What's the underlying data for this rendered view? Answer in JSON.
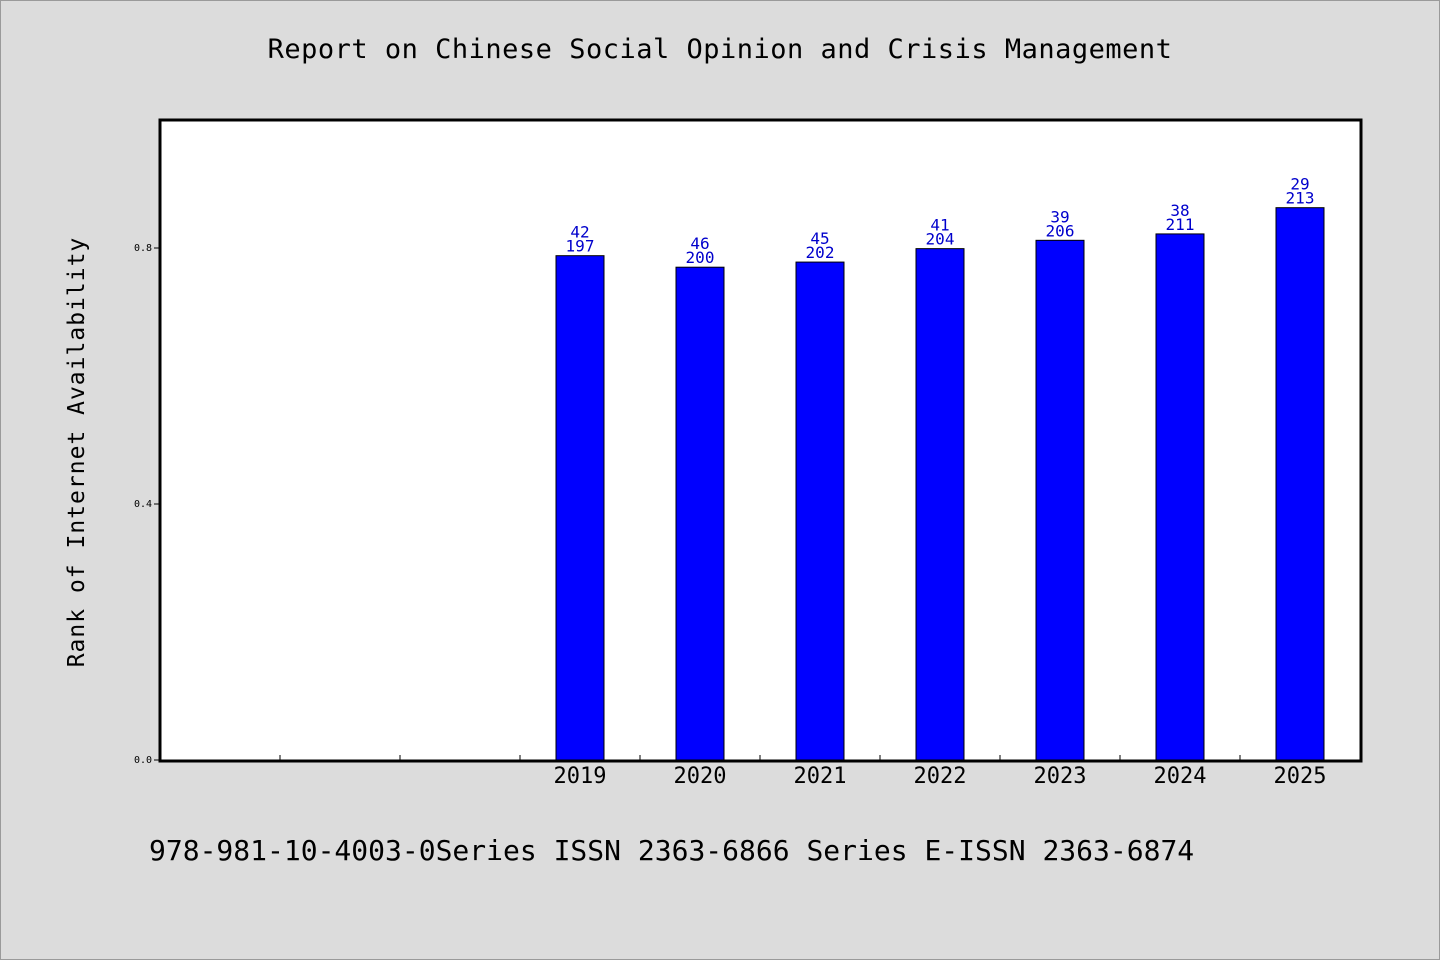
{
  "chart_data": {
    "type": "bar",
    "title": "Report on Chinese Social Opinion and Crisis Management",
    "ylabel": "Rank of Internet Availability",
    "xlabel": "",
    "categories": [
      "",
      "",
      "",
      "2019",
      "2020",
      "2021",
      "2022",
      "2023",
      "2024",
      "2025"
    ],
    "values": [
      null,
      null,
      null,
      0.788,
      0.77,
      0.778,
      0.799,
      0.812,
      0.822,
      0.863
    ],
    "bar_labels": [
      null,
      null,
      null,
      [
        "42",
        "197"
      ],
      [
        "46",
        "200"
      ],
      [
        "45",
        "202"
      ],
      [
        "41",
        "204"
      ],
      [
        "39",
        "206"
      ],
      [
        "38",
        "211"
      ],
      [
        "29",
        "213"
      ]
    ],
    "yticks": [
      0.0,
      0.4,
      0.8
    ],
    "ytick_labels": [
      "0.0",
      "0.4",
      "0.8"
    ],
    "ylim": [
      0,
      1.0
    ],
    "grid": false,
    "colors": {
      "bar_fill": "#0000ff",
      "bar_stroke": "#000000",
      "label_text": "#0000cc",
      "background": "#dcdcdc",
      "plot_background": "#ffffff"
    }
  },
  "footer": "978-981-10-4003-0Series ISSN 2363-6866 Series E-ISSN 2363-6874"
}
